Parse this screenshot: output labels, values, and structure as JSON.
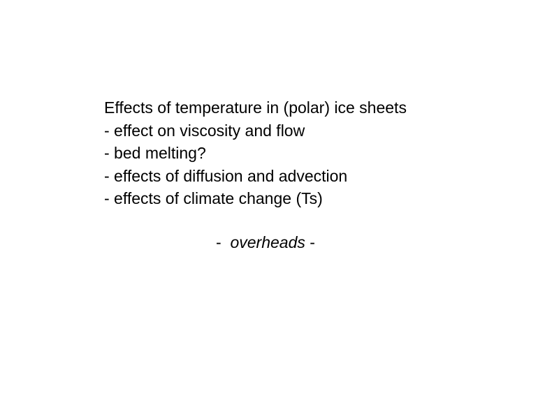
{
  "slide": {
    "title": "Effects of temperature in (polar) ice sheets",
    "bullets": [
      "- effect on viscosity and flow",
      "- bed melting?",
      "- effects of diffusion and advection",
      "- effects of climate change (Ts)"
    ],
    "note": {
      "lead": "-  ",
      "word": "overheads",
      "trail": " -"
    }
  }
}
